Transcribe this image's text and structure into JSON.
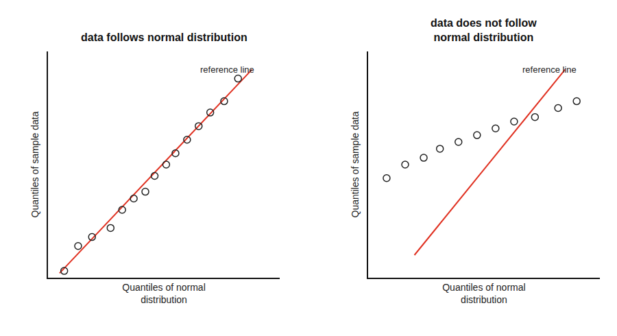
{
  "chart_data": [
    {
      "type": "scatter",
      "title": "data follows normal distribution",
      "xlabel": "Quantiles of normal\ndistribution",
      "ylabel": "Quantiles of sample data",
      "xlim": [
        0,
        1
      ],
      "ylim": [
        0,
        1
      ],
      "xticks": [],
      "yticks": [],
      "tick_labels": false,
      "grid": false,
      "series": [
        {
          "type": "line",
          "color": "#e03020",
          "line_style": "solid",
          "x": [
            0.05,
            0.88
          ],
          "values": [
            0.02,
            0.92
          ]
        },
        {
          "type": "scatter",
          "color": "#222222",
          "marker": "circle-open",
          "x": [
            0.07,
            0.13,
            0.19,
            0.27,
            0.32,
            0.37,
            0.42,
            0.46,
            0.51,
            0.55,
            0.6,
            0.65,
            0.7,
            0.76,
            0.82
          ],
          "values": [
            0.03,
            0.14,
            0.18,
            0.22,
            0.3,
            0.35,
            0.38,
            0.45,
            0.5,
            0.55,
            0.61,
            0.67,
            0.73,
            0.78,
            0.88
          ]
        }
      ],
      "annotations": [
        {
          "text": "reference line",
          "x": 0.65,
          "y": 0.92
        }
      ]
    },
    {
      "type": "scatter",
      "title": "data does not follow\nnormal distribution",
      "xlabel": "Quantiles of normal\ndistribution",
      "ylabel": "Quantiles of sample data",
      "xlim": [
        0,
        1
      ],
      "ylim": [
        0,
        1
      ],
      "xticks": [],
      "yticks": [],
      "tick_labels": false,
      "grid": false,
      "series": [
        {
          "type": "line",
          "color": "#e03020",
          "line_style": "solid",
          "x": [
            0.2,
            0.85
          ],
          "values": [
            0.1,
            0.92
          ]
        },
        {
          "type": "scatter",
          "color": "#222222",
          "marker": "circle-open",
          "x": [
            0.08,
            0.16,
            0.24,
            0.31,
            0.39,
            0.47,
            0.55,
            0.63,
            0.72,
            0.82,
            0.9
          ],
          "values": [
            0.44,
            0.5,
            0.53,
            0.57,
            0.6,
            0.63,
            0.66,
            0.69,
            0.71,
            0.75,
            0.78
          ]
        }
      ],
      "annotations": [
        {
          "text": "reference line",
          "x": 0.66,
          "y": 0.92
        }
      ]
    }
  ]
}
